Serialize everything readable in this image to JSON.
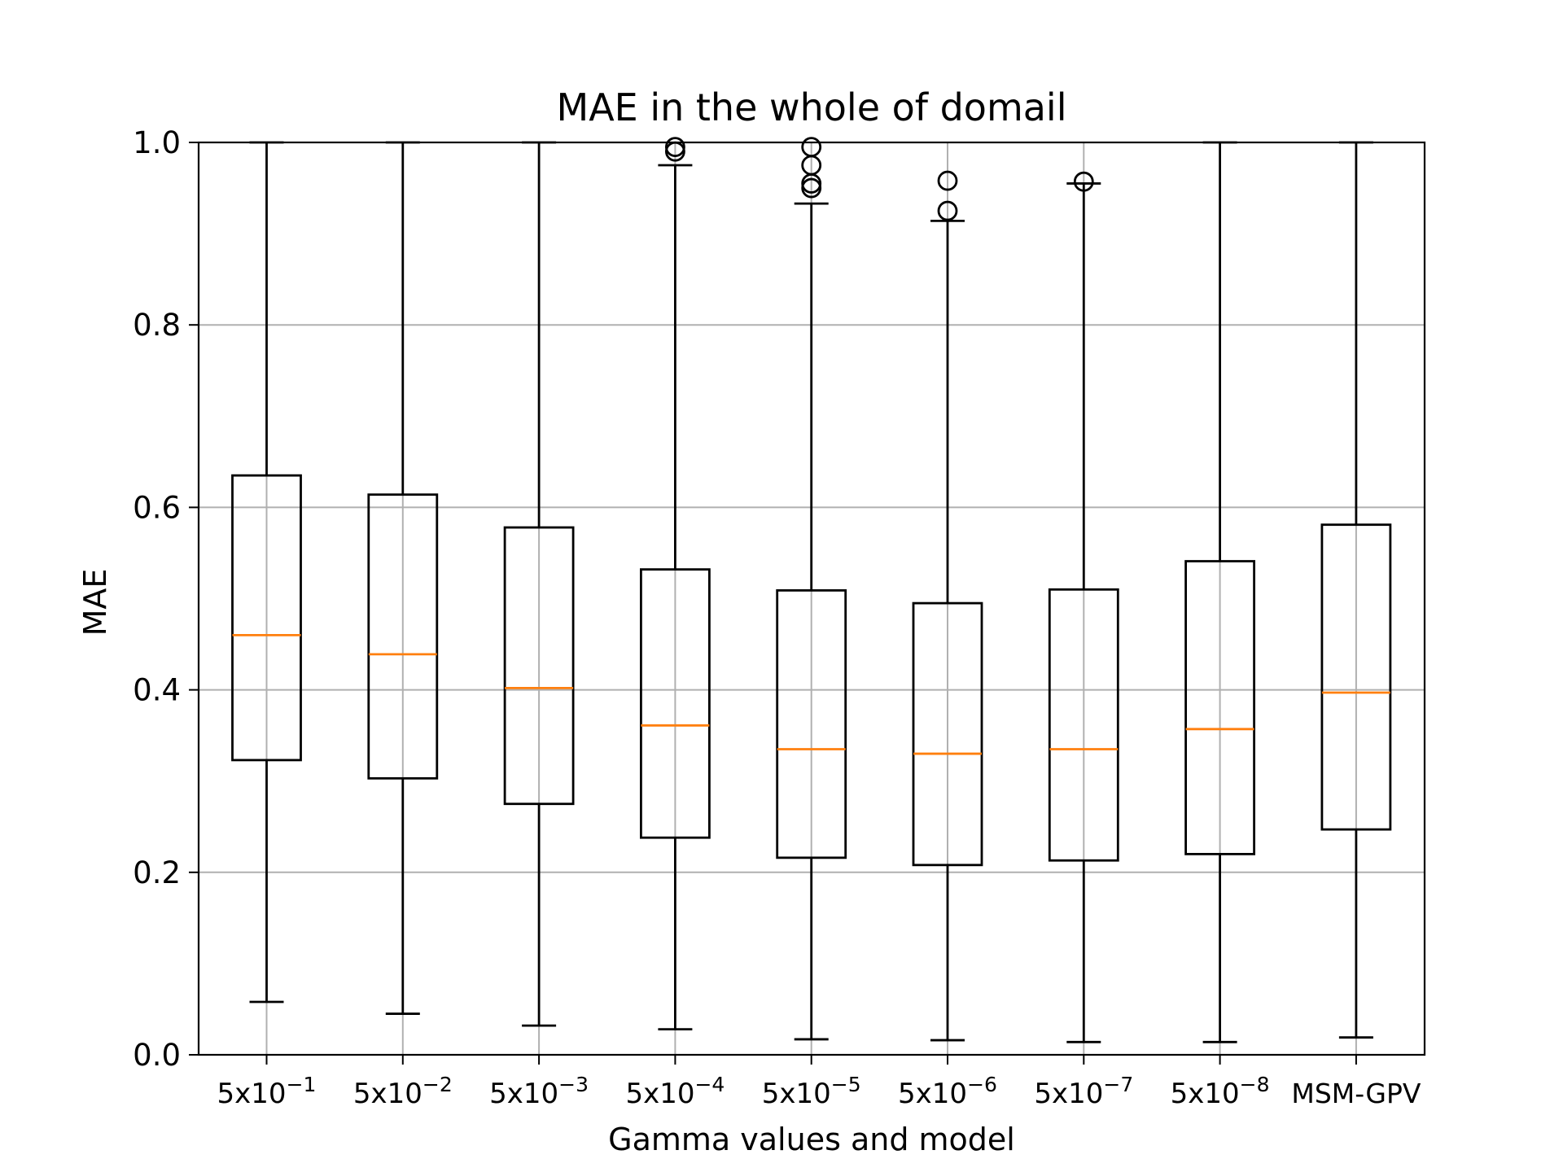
{
  "chart_data": {
    "type": "boxplot",
    "title": "MAE in the whole of domail",
    "xlabel": "Gamma values and model",
    "ylabel": "MAE",
    "ylim": [
      0.0,
      1.0
    ],
    "yticks": [
      "0.0",
      "0.2",
      "0.4",
      "0.6",
      "0.8",
      "1.0"
    ],
    "grid": true,
    "colors": {
      "box": "#000000",
      "median": "#ff7f0e",
      "grid": "#b0b0b0"
    },
    "categories": [
      {
        "base": "5x10",
        "exp": "−1"
      },
      {
        "base": "5x10",
        "exp": "−2"
      },
      {
        "base": "5x10",
        "exp": "−3"
      },
      {
        "base": "5x10",
        "exp": "−4"
      },
      {
        "base": "5x10",
        "exp": "−5"
      },
      {
        "base": "5x10",
        "exp": "−6"
      },
      {
        "base": "5x10",
        "exp": "−7"
      },
      {
        "base": "5x10",
        "exp": "−8"
      },
      {
        "base": "MSM-GPV",
        "exp": ""
      }
    ],
    "boxes": [
      {
        "whislo": 0.058,
        "q1": 0.323,
        "med": 0.46,
        "q3": 0.635,
        "whishi": 1.0,
        "fliers": []
      },
      {
        "whislo": 0.045,
        "q1": 0.303,
        "med": 0.439,
        "q3": 0.614,
        "whishi": 1.0,
        "fliers": []
      },
      {
        "whislo": 0.032,
        "q1": 0.275,
        "med": 0.402,
        "q3": 0.578,
        "whishi": 1.0,
        "fliers": []
      },
      {
        "whislo": 0.028,
        "q1": 0.238,
        "med": 0.361,
        "q3": 0.532,
        "whishi": 0.975,
        "fliers": [
          0.99,
          0.995
        ]
      },
      {
        "whislo": 0.017,
        "q1": 0.216,
        "med": 0.335,
        "q3": 0.509,
        "whishi": 0.933,
        "fliers": [
          0.95,
          0.955,
          0.975,
          0.995
        ]
      },
      {
        "whislo": 0.016,
        "q1": 0.208,
        "med": 0.33,
        "q3": 0.495,
        "whishi": 0.914,
        "fliers": [
          0.925,
          0.958
        ]
      },
      {
        "whislo": 0.014,
        "q1": 0.213,
        "med": 0.335,
        "q3": 0.51,
        "whishi": 0.955,
        "fliers": [
          0.957
        ]
      },
      {
        "whislo": 0.014,
        "q1": 0.22,
        "med": 0.357,
        "q3": 0.541,
        "whishi": 1.0,
        "fliers": []
      },
      {
        "whislo": 0.019,
        "q1": 0.247,
        "med": 0.397,
        "q3": 0.581,
        "whishi": 1.0,
        "fliers": []
      }
    ]
  }
}
